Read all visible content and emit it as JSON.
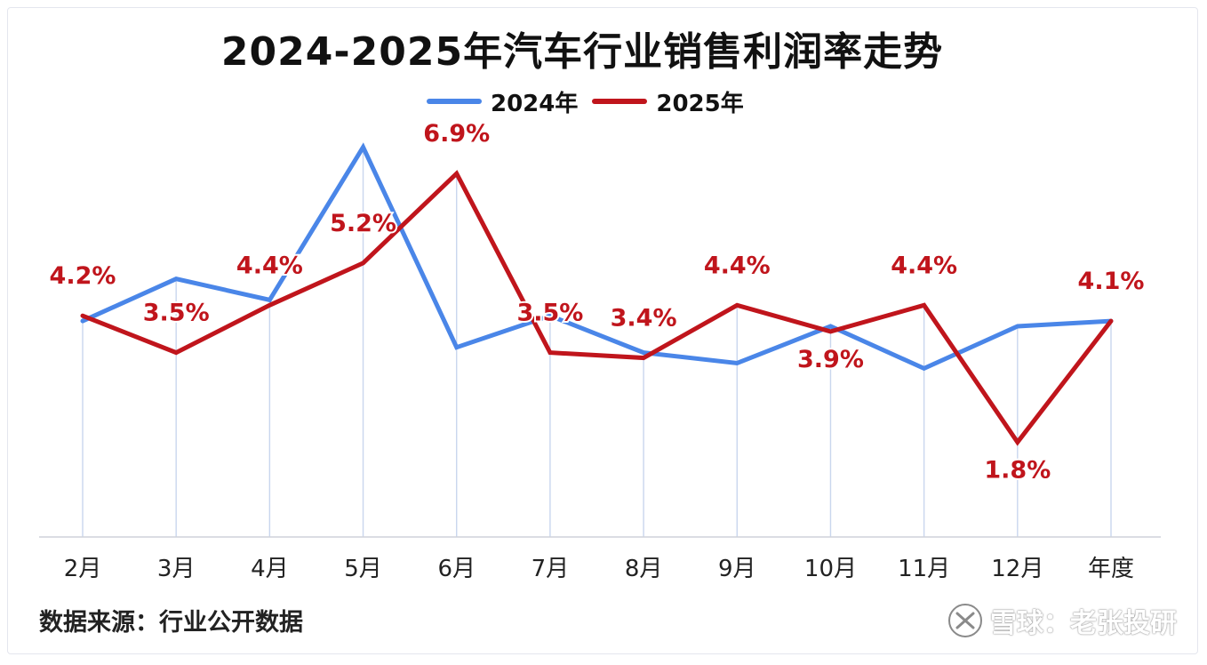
{
  "chart_data": {
    "type": "line",
    "title": "2024-2025年汽车行业销售利润率走势",
    "categories": [
      "2月",
      "3月",
      "4月",
      "5月",
      "6月",
      "7月",
      "8月",
      "9月",
      "10月",
      "11月",
      "12月",
      "年度"
    ],
    "series": [
      {
        "name": "2024年",
        "color": "#4a86e8",
        "values": [
          4.1,
          4.9,
          4.5,
          7.4,
          3.6,
          4.2,
          3.5,
          3.3,
          4.0,
          3.2,
          4.0,
          4.1
        ]
      },
      {
        "name": "2025年",
        "color": "#c0151c",
        "values": [
          4.2,
          3.5,
          4.4,
          5.2,
          6.9,
          3.5,
          3.4,
          4.4,
          3.9,
          4.4,
          1.8,
          4.1
        ],
        "labels": [
          "4.2%",
          "3.5%",
          "4.4%",
          "5.2%",
          "6.9%",
          "3.5%",
          "3.4%",
          "4.4%",
          "3.9%",
          "4.4%",
          "1.8%",
          "4.1%"
        ]
      }
    ],
    "ylim": [
      0,
      8
    ],
    "grid": false,
    "legend": "top-center"
  },
  "source_text": "数据来源：行业公开数据",
  "watermark": {
    "text": "雪球：老张投研",
    "icon": "snowball-logo-icon"
  }
}
